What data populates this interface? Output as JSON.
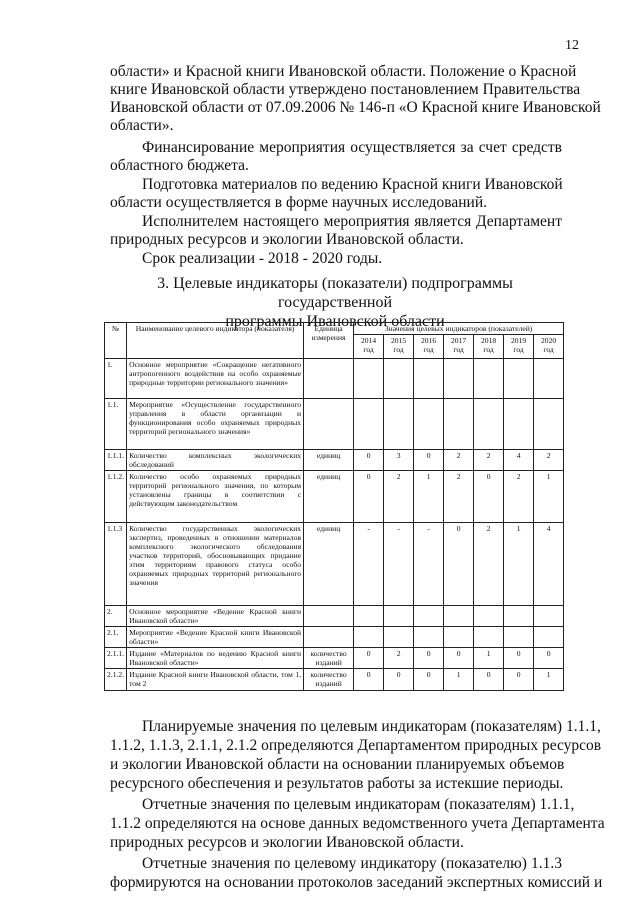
{
  "page_number": "12",
  "paragraphs": [
    {
      "indent": false,
      "lines": [
        "области» и Красной книги Ивановской области. Положение о Красной",
        "книге Ивановской области утверждено постановлением Правительства",
        "Ивановской области от 07.09.2006 № 146-п «О Красной книге Ивановской",
        "области»."
      ]
    },
    {
      "indent": true,
      "lines": [
        "Финансирование мероприятия осуществляется за счет средств",
        "областного бюджета."
      ]
    },
    {
      "indent": true,
      "lines": [
        "Подготовка материалов по ведению Красной книги Ивановской",
        "области осуществляется в форме научных исследований."
      ]
    },
    {
      "indent": true,
      "lines": [
        "Исполнителем настоящего мероприятия является Департамент",
        "природных ресурсов и экологии Ивановской области."
      ]
    },
    {
      "indent": true,
      "lines": [
        "Срок реализации - 2018 - 2020 годы."
      ]
    }
  ],
  "section_heading": [
    "3. Целевые индикаторы (показатели) подпрограммы государственной",
    "программы Ивановской области"
  ],
  "table": {
    "headers": {
      "num": "№",
      "name": "Наименование целевого индикатора (показателя)",
      "unit": "Единица измерения",
      "values_group": "Значения целевых индикаторов (показателей)",
      "years": [
        "2014 год",
        "2015 год",
        "2016 год",
        "2017 год",
        "2018 год",
        "2019 год",
        "2020 год"
      ]
    },
    "rows": [
      {
        "num": "1.",
        "name": "Основное мероприятие «Сокращение негативного антропогенного воздействия на особо охраняемые природные территории регионального значения»",
        "unit": "",
        "values": [
          "",
          "",
          "",
          "",
          "",
          "",
          ""
        ]
      },
      {
        "num": "1.1.",
        "name": "Мероприятие «Осуществление государственного управления в области организации и функционирования особо охраняемых природных территорий регионального значения»",
        "unit": "",
        "values": [
          "",
          "",
          "",
          "",
          "",
          "",
          ""
        ]
      },
      {
        "num": "1.1.1.",
        "name": "Количество комплексных экологических обследований",
        "unit": "единиц",
        "values": [
          "0",
          "3",
          "0",
          "2",
          "2",
          "4",
          "2"
        ]
      },
      {
        "num": "1.1.2.",
        "name": "Количество особо охраняемых природных территорий регионального значения, по которым установлены границы в соответствии с действующим законодательством",
        "unit": "единиц",
        "values": [
          "0",
          "2",
          "1",
          "2",
          "0",
          "2",
          "1"
        ]
      },
      {
        "num": "1.1.3",
        "name": "Количество государственных экологических экспертиз, проведенных в отношении материалов комплексного экологического обследования участков территорий, обосновывающих придание этим территориям правового статуса особо охраняемых природных территорий регионального значения",
        "unit": "единиц",
        "values": [
          "-",
          "-",
          "-",
          "0",
          "2",
          "1",
          "4"
        ]
      },
      {
        "num": "2.",
        "name": "Основное мероприятие «Ведение Красной книги Ивановской области»",
        "unit": "",
        "values": [
          "",
          "",
          "",
          "",
          "",
          "",
          ""
        ]
      },
      {
        "num": "2.1.",
        "name": "Мероприятие «Ведение Красной книги Ивановской области»",
        "unit": "",
        "values": [
          "",
          "",
          "",
          "",
          "",
          "",
          ""
        ]
      },
      {
        "num": "2.1.1.",
        "name": "Издание «Материалов по ведению Красной книги Ивановской области»",
        "unit": "количество изданий",
        "values": [
          "0",
          "2",
          "0",
          "0",
          "1",
          "0",
          "0"
        ]
      },
      {
        "num": "2.1.2.",
        "name": "Издание Красной книги Ивановской области, том 1, том 2",
        "unit": "количество изданий",
        "values": [
          "0",
          "0",
          "0",
          "1",
          "0",
          "0",
          "1"
        ]
      }
    ]
  },
  "after_paragraphs": [
    {
      "indent": true,
      "lines": [
        "Планируемые значения по целевым индикаторам (показателям) 1.1.1,",
        "1.1.2, 1.1.3, 2.1.1, 2.1.2 определяются Департаментом природных ресурсов",
        "и экологии Ивановской области на основании планируемых объемов",
        "ресурсного обеспечения и результатов работы за истекшие периоды."
      ]
    },
    {
      "indent": true,
      "lines": [
        "Отчетные значения по целевым индикаторам (показателям) 1.1.1,",
        "1.1.2 определяются на основе данных ведомственного учета Департамента",
        "природных ресурсов и экологии Ивановской области."
      ]
    },
    {
      "indent": true,
      "lines": [
        "Отчетные значения по целевому индикатору (показателю) 1.1.3",
        "формируются на основании протоколов заседаний экспертных комиссий и"
      ]
    }
  ]
}
